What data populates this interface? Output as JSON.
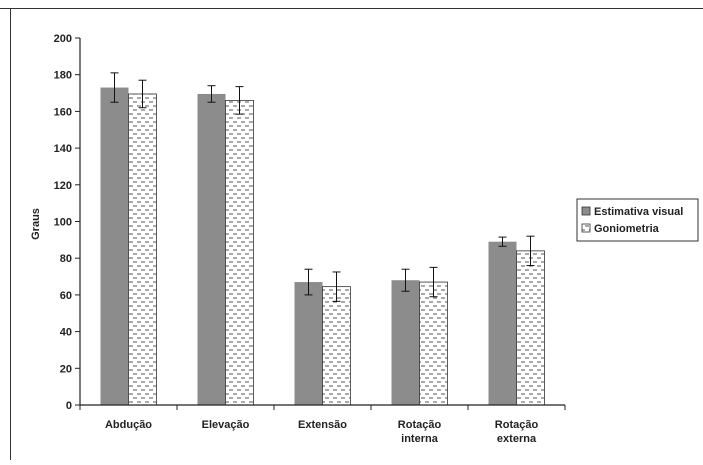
{
  "chart_data": {
    "type": "bar",
    "title": "",
    "xlabel": "",
    "ylabel": "Graus",
    "ylim": [
      0,
      200
    ],
    "yticks": [
      0,
      20,
      40,
      60,
      80,
      100,
      120,
      140,
      160,
      180,
      200
    ],
    "categories": [
      [
        "Abdução"
      ],
      [
        "Elevação"
      ],
      [
        "Extensão"
      ],
      [
        "Rotação",
        "interna"
      ],
      [
        "Rotação",
        "externa"
      ]
    ],
    "series": [
      {
        "name": "Estimativa visual",
        "color": "#8c8c8c",
        "pattern": "solid",
        "values": [
          173,
          169.5,
          67,
          68,
          89
        ],
        "errors": [
          8,
          4.5,
          7,
          6,
          2.5
        ]
      },
      {
        "name": "Goniometria",
        "color": "#ffffff",
        "pattern": "dashes",
        "values": [
          169.5,
          166,
          64.5,
          67,
          84
        ],
        "errors": [
          7.5,
          7.5,
          8,
          8,
          8
        ]
      }
    ],
    "grid": false,
    "legend": "right"
  }
}
